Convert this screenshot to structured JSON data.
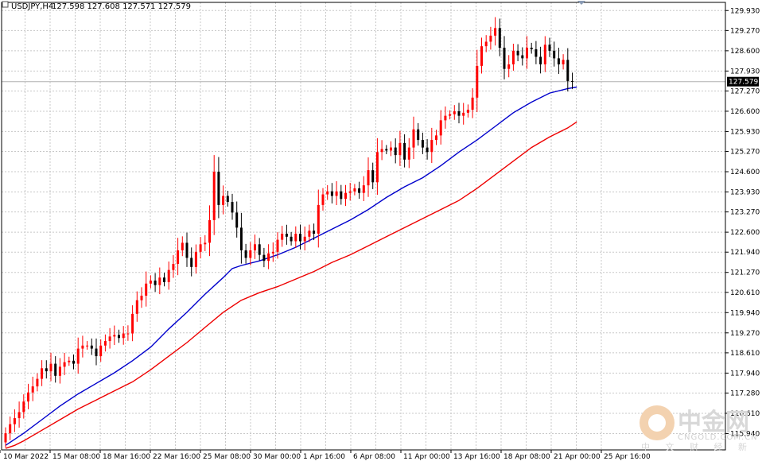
{
  "header": {
    "symbol": "USDJPY,H4",
    "ohlc": "127.598 127.608 127.571 127.579"
  },
  "current_price": "127.579",
  "watermark": {
    "brand": "中金网",
    "url": "CNGOLD.COM.CN",
    "sub": "中 文 财 经 新 媒 体"
  },
  "colors": {
    "background": "#ffffff",
    "grid": "#c8c8c8",
    "up_candle": "#ff0000",
    "down_candle": "#000000",
    "ma_fast": "#0000cc",
    "ma_slow": "#ee0000",
    "price_tag": "#000000"
  },
  "chart_data": {
    "type": "line",
    "title": "USDJPY,H4",
    "ylim": [
      115.4,
      130.2
    ],
    "y_ticks": [
      "129.930",
      "129.270",
      "128.600",
      "127.930",
      "127.270",
      "126.600",
      "125.930",
      "125.270",
      "124.600",
      "123.930",
      "123.270",
      "122.600",
      "121.940",
      "121.270",
      "120.610",
      "119.940",
      "119.270",
      "118.610",
      "117.940",
      "117.280",
      "116.610",
      "115.940"
    ],
    "x_ticks": [
      "10 Mar 2022",
      "15 Mar 08:00",
      "18 Mar 16:00",
      "22 Mar 16:00",
      "25 Mar 08:00",
      "30 Mar 00:00",
      "1 Apr 16:00",
      "6 Apr 08:00",
      "11 Apr 00:00",
      "13 Apr 16:00",
      "18 Apr 08:00",
      "21 Apr 00:00",
      "25 Apr 16:00"
    ],
    "grid": true,
    "series": [
      {
        "role": "price_close",
        "style": "candlestick",
        "values": [
          115.95,
          116.25,
          116.45,
          116.65,
          117.0,
          117.3,
          117.5,
          117.75,
          118.1,
          118.0,
          118.25,
          117.85,
          118.15,
          118.3,
          118.35,
          118.25,
          118.75,
          118.85,
          118.85,
          118.75,
          118.5,
          118.85,
          119.0,
          119.15,
          119.2,
          119.1,
          119.25,
          119.25,
          119.9,
          120.35,
          120.5,
          120.9,
          121.0,
          120.85,
          121.1,
          120.95,
          121.35,
          121.55,
          122.0,
          122.25,
          121.75,
          121.45,
          121.95,
          122.2,
          122.25,
          123.0,
          124.6,
          123.5,
          123.8,
          123.6,
          123.25,
          122.75,
          122.0,
          121.75,
          122.0,
          122.2,
          121.85,
          121.65,
          121.9,
          121.95,
          122.35,
          122.55,
          122.45,
          122.3,
          122.55,
          122.3,
          122.45,
          122.65,
          122.55,
          123.5,
          123.85,
          123.95,
          123.8,
          123.95,
          123.7,
          123.9,
          123.95,
          124.05,
          123.9,
          124.15,
          124.65,
          124.25,
          125.25,
          125.35,
          125.3,
          125.4,
          125.15,
          125.55,
          125.0,
          125.4,
          126.0,
          125.65,
          125.4,
          125.25,
          125.65,
          125.8,
          126.3,
          126.45,
          126.5,
          126.6,
          126.45,
          126.55,
          126.65,
          127.05,
          128.1,
          128.75,
          128.9,
          129.1,
          129.35,
          128.7,
          128.0,
          128.15,
          128.6,
          128.45,
          128.35,
          128.7,
          128.65,
          128.4,
          128.15,
          128.8,
          128.6,
          128.35,
          128.15,
          128.3,
          127.6,
          127.579
        ]
      },
      {
        "name": "",
        "role": "moving_average_fast",
        "x": [
          0,
          2,
          4,
          8,
          12,
          16,
          20,
          24,
          28,
          32,
          36,
          40,
          44,
          48,
          50,
          52,
          56,
          60,
          64,
          68,
          72,
          76,
          80,
          84,
          88,
          92,
          96,
          100,
          104,
          108,
          112,
          116,
          120,
          124,
          126
        ],
        "values": [
          115.55,
          115.75,
          115.95,
          116.4,
          116.85,
          117.25,
          117.6,
          117.95,
          118.35,
          118.8,
          119.4,
          119.95,
          120.55,
          121.1,
          121.4,
          121.5,
          121.65,
          121.85,
          122.1,
          122.4,
          122.7,
          123.0,
          123.35,
          123.75,
          124.1,
          124.4,
          124.8,
          125.25,
          125.65,
          126.1,
          126.55,
          126.9,
          127.2,
          127.35,
          127.4
        ]
      },
      {
        "name": "",
        "role": "moving_average_slow",
        "x": [
          0,
          2,
          4,
          8,
          12,
          16,
          20,
          24,
          28,
          32,
          36,
          40,
          44,
          48,
          52,
          56,
          60,
          64,
          68,
          72,
          76,
          80,
          84,
          88,
          92,
          96,
          100,
          104,
          108,
          112,
          116,
          120,
          124,
          126
        ],
        "values": [
          115.45,
          115.55,
          115.7,
          116.05,
          116.4,
          116.75,
          117.05,
          117.35,
          117.65,
          118.05,
          118.5,
          118.95,
          119.45,
          119.95,
          120.35,
          120.6,
          120.8,
          121.05,
          121.3,
          121.6,
          121.85,
          122.15,
          122.45,
          122.75,
          123.05,
          123.35,
          123.65,
          124.05,
          124.5,
          124.95,
          125.4,
          125.75,
          126.05,
          126.25
        ]
      }
    ]
  }
}
